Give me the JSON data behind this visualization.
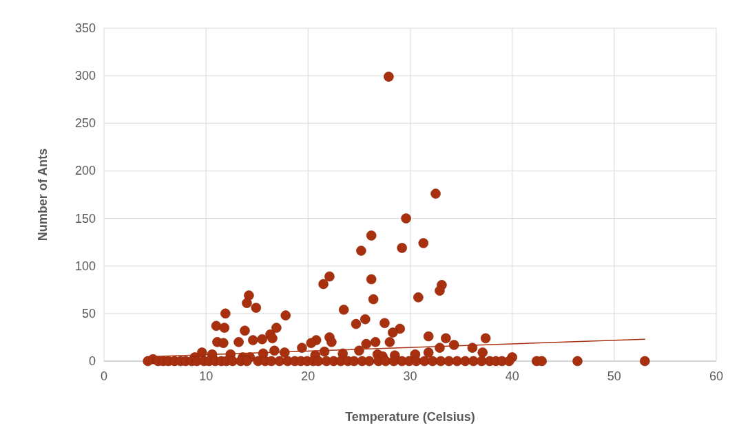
{
  "chart_data": {
    "type": "scatter",
    "xlabel": "Temperature (Celsius)",
    "ylabel": "Number of Ants",
    "xlim": [
      0,
      60
    ],
    "xticks": [
      0,
      10,
      20,
      30,
      40,
      50,
      60
    ],
    "ylim": [
      0,
      350
    ],
    "yticks": [
      0,
      50,
      100,
      150,
      200,
      250,
      300,
      350
    ],
    "grid": true,
    "series": [
      {
        "color": "#a8300f",
        "marker": "circle",
        "x": [
          27.9,
          32.5,
          29.6,
          26.2,
          31.3,
          29.2,
          25.2,
          22.1,
          21.5,
          26.2,
          33.1,
          32.9,
          26.4,
          30.8,
          14.2,
          14.0,
          14.9,
          23.5,
          11.9,
          17.8,
          25.6,
          27.5,
          24.7,
          11.0,
          11.8,
          16.9,
          13.8,
          29.0,
          28.3,
          31.8,
          33.5,
          37.4,
          20.8,
          22.1,
          20.3,
          22.3,
          26.6,
          28.0,
          13.2,
          11.1,
          11.7,
          14.6,
          15.5,
          16.3,
          16.5,
          34.3,
          36.1,
          25.7,
          19.4,
          16.7,
          17.7,
          37.1,
          32.9,
          31.8,
          9.6,
          10.6,
          8.9,
          12.4,
          13.6,
          14.3,
          15.6,
          20.7,
          21.6,
          23.4,
          25.0,
          26.8,
          28.5,
          30.5,
          27.3,
          40.0,
          4.8,
          4.3,
          5.3,
          5.8,
          6.3,
          6.9,
          7.5,
          8.0,
          8.6,
          9.1,
          9.8,
          10.3,
          10.9,
          11.5,
          12.0,
          12.6,
          13.4,
          14.0,
          15.1,
          15.8,
          16.4,
          17.2,
          18.0,
          18.7,
          19.3,
          19.9,
          20.5,
          21.0,
          21.8,
          22.5,
          23.2,
          23.9,
          24.5,
          25.3,
          26.0,
          26.9,
          27.6,
          28.4,
          29.2,
          29.9,
          30.6,
          31.4,
          32.2,
          33.0,
          33.8,
          34.6,
          35.4,
          36.2,
          37.0,
          37.8,
          38.4,
          39.0,
          39.7,
          42.4,
          42.9,
          46.4,
          53.0
        ],
        "values": [
          299,
          176,
          150,
          132,
          124,
          119,
          116,
          89,
          81,
          86,
          80,
          74,
          65,
          67,
          69,
          61,
          56,
          54,
          50,
          48,
          44,
          40,
          39,
          37,
          35,
          35,
          32,
          34,
          30,
          26,
          24,
          24,
          22,
          25,
          19,
          20,
          20,
          20,
          20,
          20,
          19,
          22,
          23,
          28,
          24,
          17,
          14,
          18,
          14,
          11,
          9,
          9,
          14,
          9,
          9,
          7,
          4,
          7,
          4,
          4,
          8,
          6,
          10,
          8,
          11,
          7,
          6,
          7,
          5,
          4,
          2,
          0,
          0,
          0,
          0,
          0,
          0,
          0,
          0,
          0,
          0,
          0,
          0,
          0,
          0,
          0,
          0,
          0,
          0,
          0,
          0,
          0,
          0,
          0,
          0,
          0,
          0,
          0,
          0,
          0,
          0,
          0,
          0,
          0,
          0,
          0,
          0,
          0,
          0,
          0,
          0,
          0,
          0,
          0,
          0,
          0,
          0,
          0,
          0,
          0,
          0,
          0,
          0,
          0,
          0,
          0,
          0
        ]
      },
      {
        "type": "line",
        "color": "#a8300f",
        "x": [
          4.2,
          53.0
        ],
        "values": [
          4.6,
          23
        ]
      }
    ]
  }
}
